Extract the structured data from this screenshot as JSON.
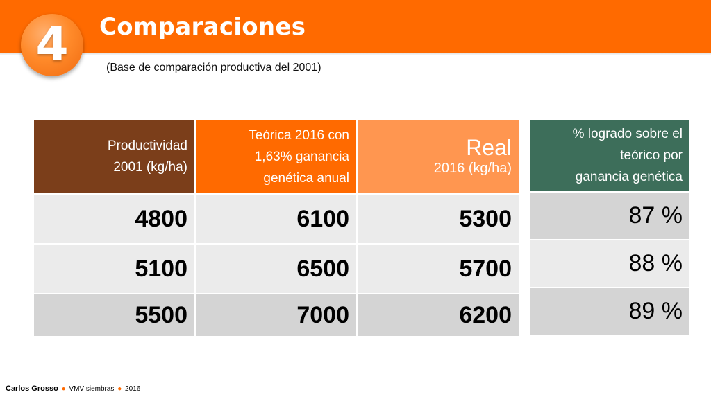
{
  "header": {
    "badge_number": "4",
    "title": "Comparaciones",
    "subtitle": "(Base de comparación productiva del 2001)"
  },
  "table": {
    "headers": {
      "productividad_line1": "Productividad",
      "productividad_line2": "2001 (kg/ha)",
      "teorica_line1": "Teórica 2016 con",
      "teorica_line2": "1,63% ganancia",
      "teorica_line3": "genética anual",
      "real_line1": "Real",
      "real_line2": "2016 (kg/ha)"
    },
    "rows": [
      {
        "productividad": "4800",
        "teorica": "6100",
        "real": "5300"
      },
      {
        "productividad": "5100",
        "teorica": "6500",
        "real": "5700"
      },
      {
        "productividad": "5500",
        "teorica": "7000",
        "real": "6200"
      }
    ]
  },
  "percent_table": {
    "header_line1": "% logrado sobre el",
    "header_line2": "teórico por",
    "header_line3": "ganancia genética",
    "values": [
      "87 %",
      "88 %",
      "89 %"
    ]
  },
  "footer": {
    "author": "Carlos Grosso",
    "org": "VMV siembras",
    "year": "2016",
    "separator": "●"
  },
  "colors": {
    "accent_orange": "#ff6a00",
    "brown": "#7b3e1a",
    "light_orange": "#ff9650",
    "green": "#3d6e5a"
  }
}
